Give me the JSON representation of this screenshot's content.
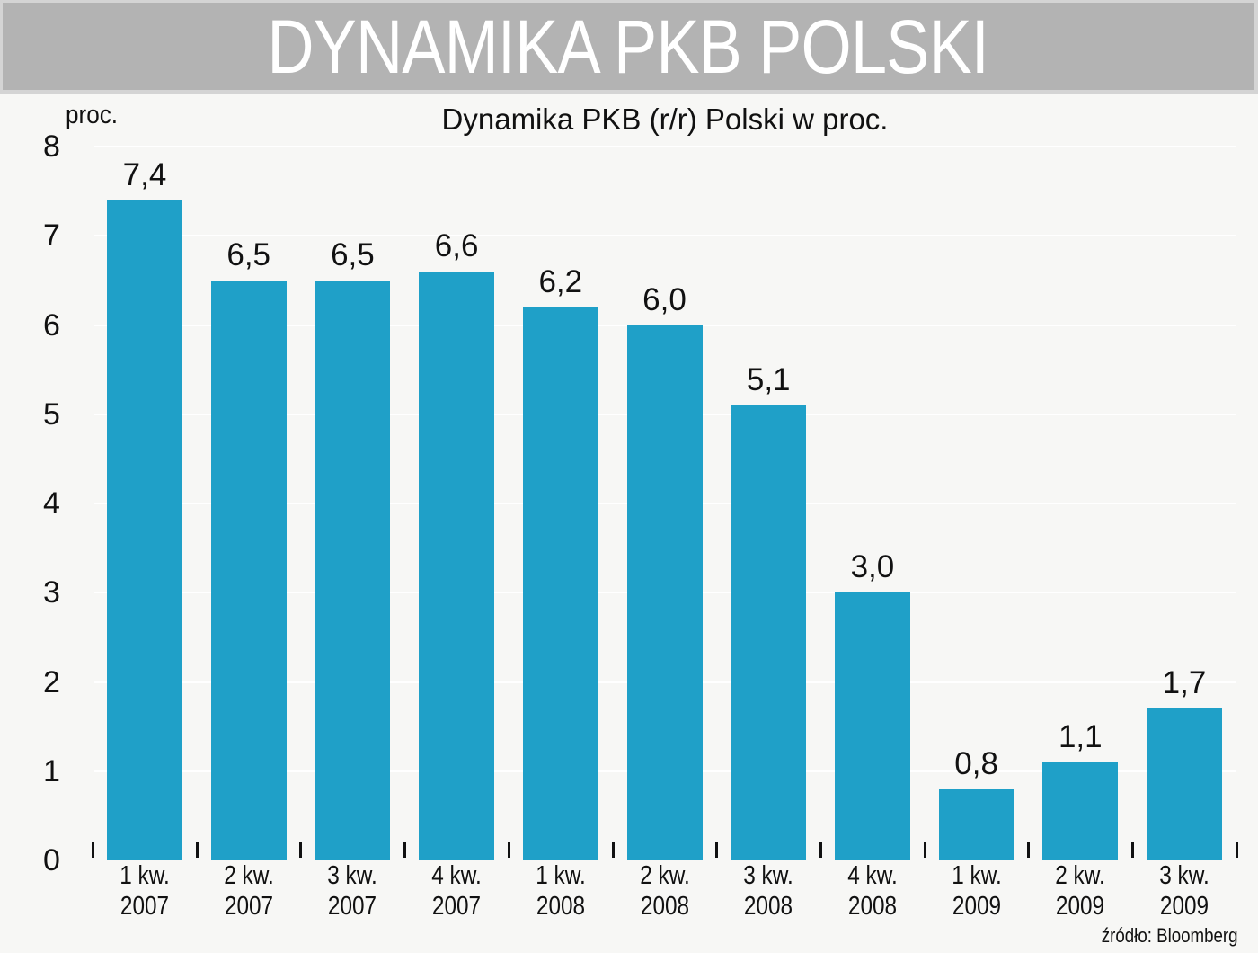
{
  "header": {
    "title": "DYNAMIKA PKB POLSKI"
  },
  "chart_data": {
    "type": "bar",
    "title": "Dynamika PKB (r/r) Polski w proc.",
    "xlabel": "",
    "ylabel": "proc.",
    "ylim": [
      0,
      8
    ],
    "yticks": [
      "0",
      "1",
      "2",
      "3",
      "4",
      "5",
      "6",
      "7",
      "8"
    ],
    "grid": true,
    "legend": null,
    "categories": [
      "1 kw. 2007",
      "2 kw. 2007",
      "3 kw. 2007",
      "4 kw. 2007",
      "1 kw. 2008",
      "2 kw. 2008",
      "3 kw. 2008",
      "4 kw. 2008",
      "1 kw. 2009",
      "2 kw. 2009",
      "3 kw. 2009"
    ],
    "values": [
      7.4,
      6.5,
      6.5,
      6.6,
      6.2,
      6.0,
      5.1,
      3.0,
      0.8,
      1.1,
      1.7
    ],
    "value_labels": [
      "7,4",
      "6,5",
      "6,5",
      "6,6",
      "6,2",
      "6,0",
      "5,1",
      "3,0",
      "0,8",
      "1,1",
      "1,7"
    ],
    "bar_color": "#1fa0c8",
    "source": "źródło: Bloomberg"
  },
  "bars": [
    {
      "quarter": "1 kw.",
      "year": "2007",
      "label": "7,4",
      "value": 7.4
    },
    {
      "quarter": "2 kw.",
      "year": "2007",
      "label": "6,5",
      "value": 6.5
    },
    {
      "quarter": "3 kw.",
      "year": "2007",
      "label": "6,5",
      "value": 6.5
    },
    {
      "quarter": "4 kw.",
      "year": "2007",
      "label": "6,6",
      "value": 6.6
    },
    {
      "quarter": "1 kw.",
      "year": "2008",
      "label": "6,2",
      "value": 6.2
    },
    {
      "quarter": "2 kw.",
      "year": "2008",
      "label": "6,0",
      "value": 6.0
    },
    {
      "quarter": "3 kw.",
      "year": "2008",
      "label": "5,1",
      "value": 5.1
    },
    {
      "quarter": "4 kw.",
      "year": "2008",
      "label": "3,0",
      "value": 3.0
    },
    {
      "quarter": "1 kw.",
      "year": "2009",
      "label": "0,8",
      "value": 0.8
    },
    {
      "quarter": "2 kw.",
      "year": "2009",
      "label": "1,1",
      "value": 1.1
    },
    {
      "quarter": "3 kw.",
      "year": "2009",
      "label": "1,7",
      "value": 1.7
    }
  ],
  "colors": {
    "background": "#f7f7f5",
    "title_bar": "#b3b3b3",
    "title_text": "#ffffff",
    "bar": "#1fa0c8"
  }
}
